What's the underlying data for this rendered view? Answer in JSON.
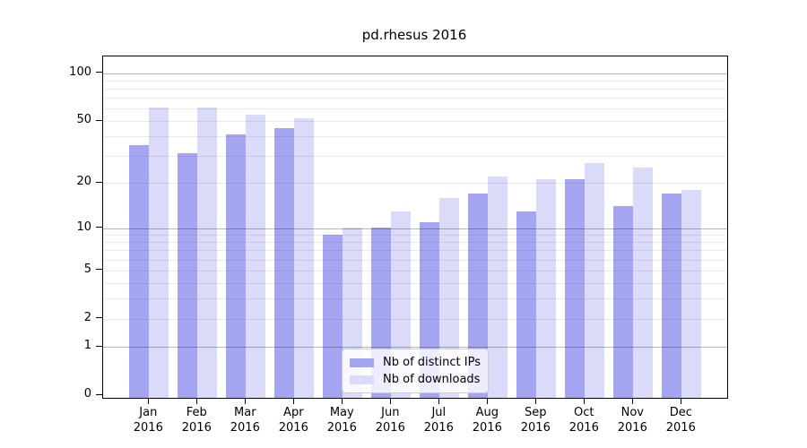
{
  "chart_data": {
    "type": "bar",
    "title": "pd.rhesus 2016",
    "categories": [
      "Jan",
      "Feb",
      "Mar",
      "Apr",
      "May",
      "Jun",
      "Jul",
      "Aug",
      "Sep",
      "Oct",
      "Nov",
      "Dec"
    ],
    "x_sublabel": "2016",
    "series": [
      {
        "name": "Nb of distinct IPs",
        "color": "#a5a5f2",
        "values": [
          35,
          31,
          41,
          45,
          9,
          10,
          11,
          17,
          13,
          21,
          14,
          17
        ]
      },
      {
        "name": "Nb of downloads",
        "color": "#dadaf9",
        "values": [
          61,
          61,
          55,
          52,
          10,
          13,
          16,
          22,
          21,
          27,
          25,
          18
        ]
      }
    ],
    "y_axis": {
      "scale": "log1p",
      "ylim": [
        0,
        128
      ],
      "tick_values": [
        100,
        50,
        20,
        10,
        5,
        2,
        1,
        0
      ],
      "tick_labels": [
        "100",
        "50",
        "20",
        "10",
        "5",
        "2",
        "1",
        "0"
      ],
      "major_gridlines": [
        1,
        10,
        100
      ],
      "minor_gridlines": [
        2,
        3,
        4,
        5,
        6,
        7,
        8,
        9,
        20,
        30,
        40,
        50,
        60,
        70,
        80,
        90
      ],
      "major_grid_color": "rgba(0,0,0,0.28)",
      "minor_grid_color": "rgba(0,0,0,0.08)"
    },
    "legend": {
      "position": "lower center",
      "entries": [
        "Nb of distinct IPs",
        "Nb of downloads"
      ]
    },
    "grid": "on",
    "xlabel": "",
    "ylabel": ""
  }
}
